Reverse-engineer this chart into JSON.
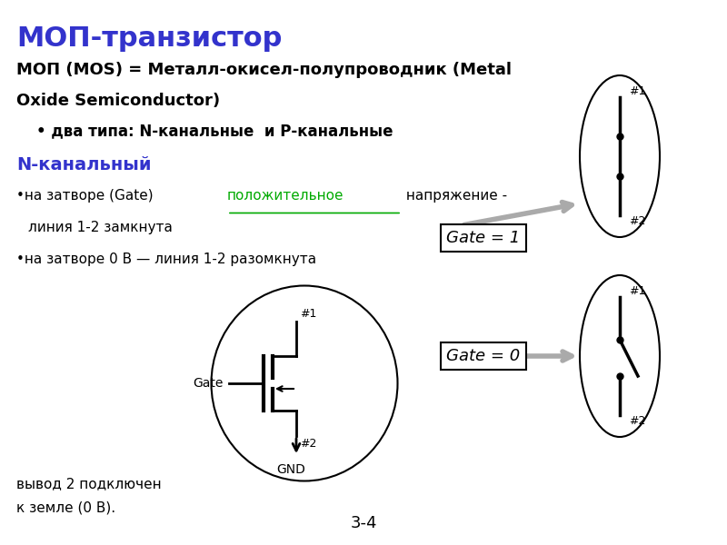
{
  "title": "МОП-транзистор",
  "title_color": "#3333cc",
  "bg_color": "#ffffff",
  "subtitle_line1": "МОП (MOS) = Металл-окисел-полупроводник (Metal",
  "subtitle_line2": "Oxide Semiconductor)",
  "bullet": "два типа: N-канальные  и Р-канальные",
  "section_n": "N-канальный",
  "section_n_color": "#3333cc",
  "text1_pre": "•на затворе (Gate) ",
  "text1_link": "положительное",
  "text1_link_color": "#00aa00",
  "text1_post": " напряжение -",
  "text1_line2": "линия 1-2 замкнута",
  "text2": "•на затворе 0 В — линия 1-2 разомкнута",
  "footnote_line1": "вывод 2 подключен",
  "footnote_line2": "к земле (0 В).",
  "page": "3-4",
  "gate1_label": "Gate = 1",
  "gate0_label": "Gate = 0",
  "arrow_color": "#aaaaaa"
}
